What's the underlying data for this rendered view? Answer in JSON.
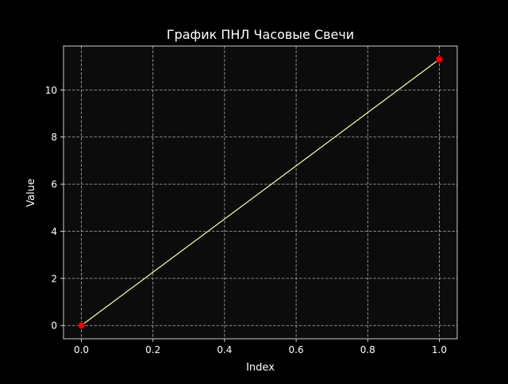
{
  "colors": {
    "figure_background": "#000000",
    "axes_background": "#0c0c0c",
    "axes_frame": "#ffffff",
    "grid": "#b0b0b0",
    "text": "#ffffff",
    "line": "#ffffa6",
    "marker_face": "#ff0000",
    "marker_edge": "#800000"
  },
  "chart_data": {
    "type": "line",
    "title": "График ПНЛ Часовые Свечи",
    "xlabel": "Index",
    "ylabel": "Value",
    "xlim": [
      -0.05,
      1.05
    ],
    "ylim": [
      -0.565,
      11.865
    ],
    "xticks": [
      0.0,
      0.2,
      0.4,
      0.6,
      0.8,
      1.0
    ],
    "xtick_labels": [
      "0.0",
      "0.2",
      "0.4",
      "0.6",
      "0.8",
      "1.0"
    ],
    "yticks": [
      0,
      2,
      4,
      6,
      8,
      10
    ],
    "ytick_labels": [
      "0",
      "2",
      "4",
      "6",
      "8",
      "10"
    ],
    "grid": true,
    "grid_style": "dashed",
    "legend": "none",
    "series": [
      {
        "x": [
          0,
          1
        ],
        "values": [
          0.0,
          11.3
        ]
      }
    ]
  }
}
